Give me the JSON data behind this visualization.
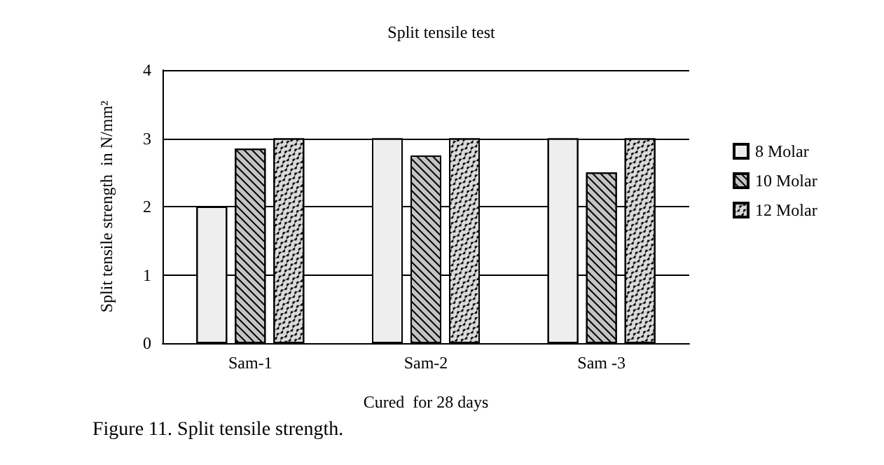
{
  "chart_data": {
    "type": "bar",
    "title": "Split tensile test",
    "xlabel": "Cured  for 28 days",
    "ylabel": "Split tensile strength  in N/mm²",
    "annotations": [
      "Figure 11. Split tensile strength."
    ],
    "categories": [
      "Sam-1",
      "Sam-2",
      "Sam -3"
    ],
    "series": [
      {
        "name": "8 Molar",
        "color": "#eeeeee",
        "values": [
          2,
          3,
          3
        ]
      },
      {
        "name": "10 Molar",
        "color": "#c4c4c4",
        "values": [
          2.85,
          2.75,
          2.5
        ]
      },
      {
        "name": "12 Molar",
        "color": "#dadada",
        "values": [
          3,
          3,
          3
        ]
      }
    ],
    "ylim": [
      0,
      4
    ],
    "yticks": [
      0,
      1,
      2,
      3,
      4
    ],
    "grid": "y",
    "legend": "right"
  }
}
